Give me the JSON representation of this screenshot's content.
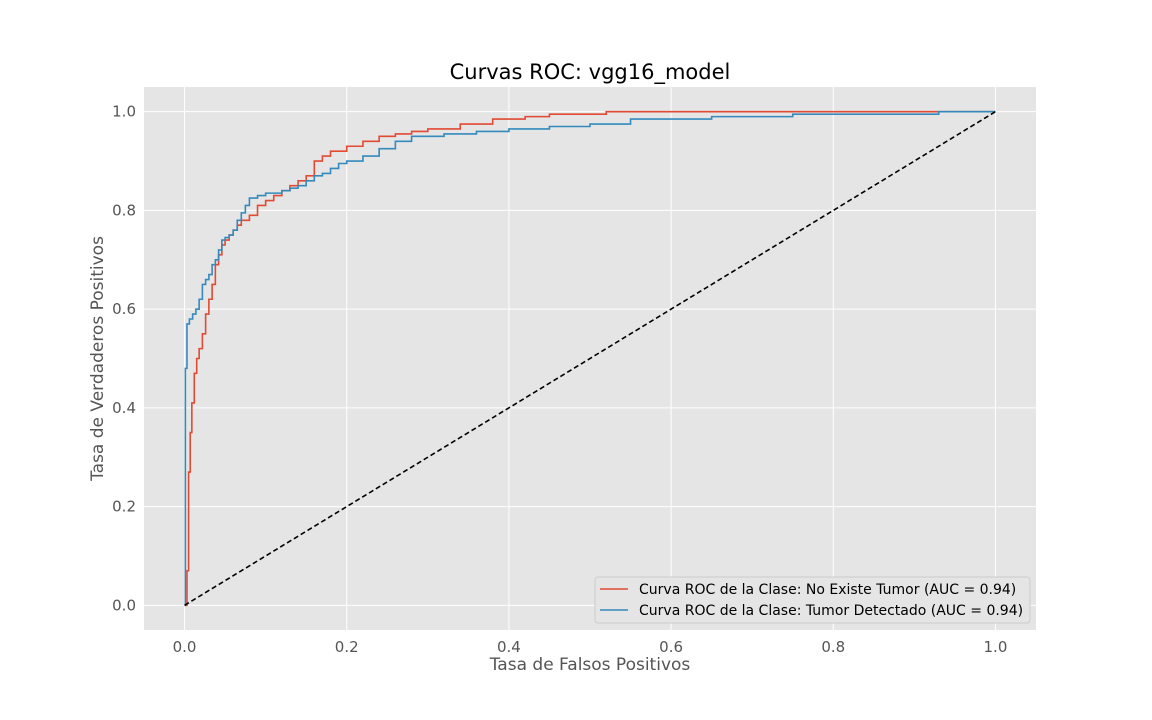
{
  "chart_data": {
    "type": "line",
    "title": "Curvas ROC: vgg16_model",
    "xlabel": "Tasa de Falsos Positivos",
    "ylabel": "Tasa de Verdaderos Positivos",
    "xlim": [
      -0.05,
      1.05
    ],
    "ylim": [
      -0.05,
      1.05
    ],
    "xticks": [
      0.0,
      0.2,
      0.4,
      0.6,
      0.8,
      1.0
    ],
    "yticks": [
      0.0,
      0.2,
      0.4,
      0.6,
      0.8,
      1.0
    ],
    "xtick_labels": [
      "0.0",
      "0.2",
      "0.4",
      "0.6",
      "0.8",
      "1.0"
    ],
    "ytick_labels": [
      "0.0",
      "0.2",
      "0.4",
      "0.6",
      "0.8",
      "1.0"
    ],
    "grid": true,
    "legend_position": "lower-right",
    "series": [
      {
        "name": "Curva ROC de la Clase: No Existe Tumor (AUC = 0.94)",
        "color": "#E24A33",
        "step": true,
        "x": [
          0.0,
          0.003,
          0.005,
          0.007,
          0.009,
          0.012,
          0.015,
          0.018,
          0.022,
          0.026,
          0.03,
          0.034,
          0.038,
          0.042,
          0.046,
          0.05,
          0.055,
          0.06,
          0.065,
          0.07,
          0.08,
          0.09,
          0.1,
          0.11,
          0.12,
          0.13,
          0.14,
          0.15,
          0.16,
          0.17,
          0.18,
          0.2,
          0.22,
          0.24,
          0.26,
          0.28,
          0.3,
          0.34,
          0.38,
          0.42,
          0.45,
          0.52,
          0.6,
          0.7,
          0.8,
          1.0
        ],
        "y": [
          0.0,
          0.07,
          0.27,
          0.35,
          0.41,
          0.47,
          0.5,
          0.52,
          0.55,
          0.59,
          0.62,
          0.65,
          0.69,
          0.71,
          0.73,
          0.74,
          0.75,
          0.76,
          0.77,
          0.78,
          0.79,
          0.81,
          0.82,
          0.83,
          0.84,
          0.85,
          0.86,
          0.87,
          0.9,
          0.91,
          0.92,
          0.93,
          0.94,
          0.95,
          0.955,
          0.96,
          0.965,
          0.975,
          0.985,
          0.99,
          0.995,
          1.0,
          1.0,
          1.0,
          1.0,
          1.0
        ]
      },
      {
        "name": "Curva ROC de la Clase: Tumor Detectado (AUC = 0.94)",
        "color": "#348ABD",
        "step": true,
        "x": [
          0.0,
          0.001,
          0.003,
          0.006,
          0.01,
          0.014,
          0.018,
          0.022,
          0.026,
          0.03,
          0.034,
          0.038,
          0.042,
          0.046,
          0.05,
          0.055,
          0.06,
          0.065,
          0.07,
          0.075,
          0.08,
          0.09,
          0.1,
          0.12,
          0.13,
          0.14,
          0.15,
          0.16,
          0.17,
          0.18,
          0.19,
          0.2,
          0.22,
          0.24,
          0.26,
          0.28,
          0.32,
          0.36,
          0.4,
          0.45,
          0.5,
          0.55,
          0.65,
          0.75,
          0.93,
          1.0
        ],
        "y": [
          0.0,
          0.48,
          0.57,
          0.58,
          0.59,
          0.6,
          0.62,
          0.65,
          0.66,
          0.67,
          0.69,
          0.7,
          0.72,
          0.74,
          0.745,
          0.75,
          0.76,
          0.78,
          0.795,
          0.81,
          0.825,
          0.83,
          0.835,
          0.84,
          0.845,
          0.85,
          0.86,
          0.87,
          0.875,
          0.885,
          0.895,
          0.9,
          0.91,
          0.925,
          0.94,
          0.95,
          0.955,
          0.96,
          0.965,
          0.97,
          0.975,
          0.985,
          0.99,
          0.995,
          1.0,
          1.0
        ]
      },
      {
        "name": "",
        "color": "#000000",
        "dashed": true,
        "x": [
          0.0,
          1.0
        ],
        "y": [
          0.0,
          1.0
        ]
      }
    ]
  }
}
